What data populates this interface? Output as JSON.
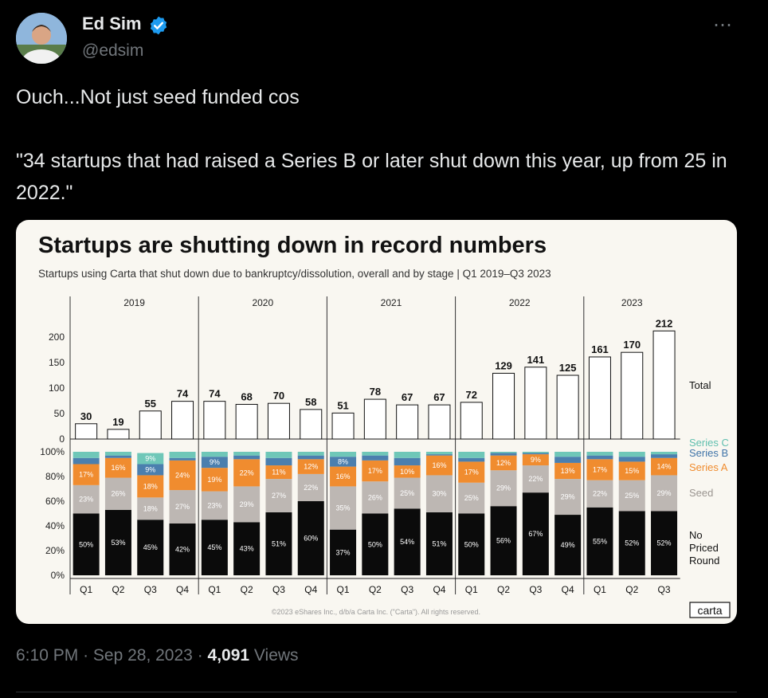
{
  "author": {
    "name": "Ed Sim",
    "handle": "@edsim",
    "verified": true
  },
  "more_icon": "⋯",
  "tweet": {
    "line1": "Ouch...Not just seed funded cos",
    "line2": "\"34 startups that had raised a Series B or later shut down this year, up from 25 in 2022.\""
  },
  "footer": {
    "time": "6:10 PM",
    "date": "Sep 28, 2023",
    "views_count": "4,091",
    "views_label": "Views"
  },
  "chart_data": {
    "type": "bar",
    "title": "Startups are shutting down in record numbers",
    "subtitle": "Startups using Carta that shut down due to bankruptcy/dissolution, overall and by stage | Q1 2019–Q3 2023",
    "copyright": "©2023 eShares Inc., d/b/a Carta Inc. (\"Carta\"). All rights reserved.",
    "brand": "carta",
    "years": [
      "2019",
      "2020",
      "2021",
      "2022",
      "2023"
    ],
    "categories": [
      "Q1",
      "Q2",
      "Q3",
      "Q4",
      "Q1",
      "Q2",
      "Q3",
      "Q4",
      "Q1",
      "Q2",
      "Q3",
      "Q4",
      "Q1",
      "Q2",
      "Q3",
      "Q4",
      "Q1",
      "Q2",
      "Q3"
    ],
    "total": {
      "name": "Total",
      "values": [
        30,
        19,
        55,
        74,
        74,
        68,
        70,
        58,
        51,
        78,
        67,
        67,
        72,
        129,
        141,
        125,
        161,
        170,
        212
      ],
      "yticks": [
        0,
        50,
        100,
        150,
        200
      ],
      "ylim": [
        0,
        220
      ]
    },
    "stage_mix": {
      "yticks": [
        "0%",
        "20%",
        "40%",
        "60%",
        "80%",
        "100%"
      ],
      "series": [
        {
          "name": "No Priced Round",
          "color": "#0b0b0b",
          "values": [
            50,
            53,
            45,
            42,
            45,
            43,
            51,
            60,
            37,
            50,
            54,
            51,
            50,
            56,
            67,
            49,
            55,
            52,
            52
          ]
        },
        {
          "name": "Seed",
          "color": "#bdb7b3",
          "values": [
            23,
            26,
            18,
            27,
            23,
            29,
            27,
            22,
            35,
            26,
            25,
            30,
            25,
            29,
            22,
            29,
            22,
            25,
            29
          ]
        },
        {
          "name": "Series A",
          "color": "#f08c2f",
          "values": [
            17,
            16,
            18,
            24,
            19,
            22,
            11,
            12,
            16,
            17,
            10,
            16,
            17,
            12,
            9,
            13,
            17,
            15,
            14
          ]
        },
        {
          "name": "Series B",
          "color": "#4b7fae",
          "values": [
            5,
            2,
            9,
            2,
            9,
            3,
            6,
            3,
            8,
            4,
            6,
            1,
            3,
            2,
            1,
            5,
            3,
            4,
            3
          ]
        },
        {
          "name": "Series C",
          "color": "#6fc7b8",
          "values": [
            5,
            3,
            9,
            5,
            4,
            3,
            5,
            3,
            4,
            3,
            5,
            2,
            5,
            1,
            1,
            4,
            3,
            4,
            2
          ]
        }
      ],
      "label_threshold": 8
    },
    "legend": {
      "total": "Total",
      "series_c": "Series C",
      "series_b": "Series B",
      "series_a": "Series A",
      "seed": "Seed",
      "no_priced": [
        "No",
        "Priced",
        "Round"
      ]
    },
    "colors": {
      "series_c": "#5fbfae",
      "series_b": "#3f74a8",
      "series_a": "#f08c2f",
      "seed": "#9a9590",
      "text": "#111111"
    }
  }
}
